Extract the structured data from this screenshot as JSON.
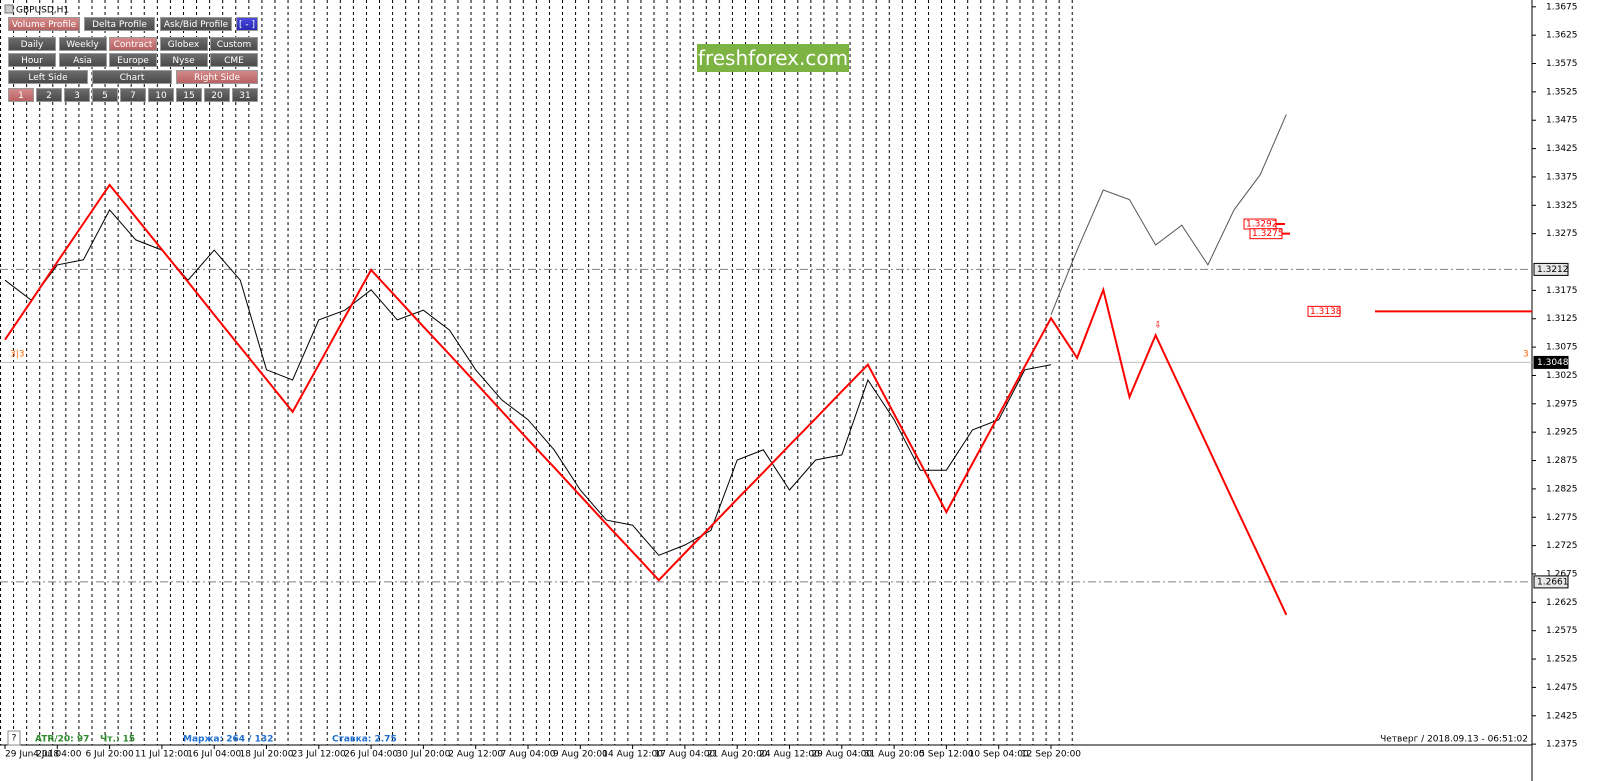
{
  "symbol": "GBPUSD,H1",
  "watermark": "freshforex.com",
  "buttons": {
    "row1": [
      {
        "label": "Volume Profile",
        "active": true
      },
      {
        "label": "Delta Profile",
        "active": false
      },
      {
        "label": "Ask/Bid Profile",
        "active": false
      },
      {
        "label": "[ - ]",
        "active": false
      }
    ],
    "row2": [
      {
        "label": "Daily",
        "active": false
      },
      {
        "label": "Weekly",
        "active": false
      },
      {
        "label": "Contract",
        "active": true
      },
      {
        "label": "Globex",
        "active": false
      },
      {
        "label": "Custom",
        "active": false
      }
    ],
    "row3": [
      {
        "label": "Hour",
        "active": false
      },
      {
        "label": "Asia",
        "active": false
      },
      {
        "label": "Europe",
        "active": false
      },
      {
        "label": "Nyse",
        "active": false
      },
      {
        "label": "CME",
        "active": false
      }
    ],
    "row4": [
      {
        "label": "Left Side",
        "active": false
      },
      {
        "label": "Chart",
        "active": false
      },
      {
        "label": "Right Side",
        "active": true
      }
    ],
    "row5": [
      {
        "label": "1",
        "active": true
      },
      {
        "label": "2",
        "active": false
      },
      {
        "label": "3",
        "active": false
      },
      {
        "label": "5",
        "active": false
      },
      {
        "label": "7",
        "active": false
      },
      {
        "label": "10",
        "active": false
      },
      {
        "label": "15",
        "active": false
      },
      {
        "label": "20",
        "active": false
      },
      {
        "label": "31",
        "active": false
      }
    ]
  },
  "status": {
    "help": "?",
    "atr": "ATR/20: 97",
    "hours": "Чт.: 15",
    "margin": "Маржа: 264 / 132",
    "rate": "Ставка: 2.75",
    "datetime": "Четверг / 2018.09.13 - 06:51:02"
  },
  "annotations": {
    "left_count": "3|3",
    "right_count": "3",
    "arrow": "⇩"
  },
  "chart_data": {
    "type": "line",
    "categories": [
      "29 Jun 2018",
      null,
      "4 Jul 04:00",
      null,
      "6 Jul 20:00",
      null,
      "11 Jul 12:00",
      null,
      "16 Jul 04:00",
      null,
      "18 Jul 20:00",
      null,
      "23 Jul 12:00",
      null,
      "26 Jul 04:00",
      null,
      "30 Jul 20:00",
      null,
      "2 Aug 12:00",
      null,
      "7 Aug 04:00",
      null,
      "9 Aug 20:00",
      null,
      "14 Aug 12:00",
      null,
      "17 Aug 04:00",
      null,
      "21 Aug 20:00",
      null,
      "24 Aug 12:00",
      null,
      "29 Aug 04:00",
      null,
      "31 Aug 20:00",
      null,
      "5 Sep 12:00",
      null,
      "10 Sep 04:00",
      null,
      "12 Sep 20:00",
      null,
      null,
      null,
      null,
      null,
      null,
      null,
      null,
      null
    ],
    "series": [
      {
        "color": "#000000",
        "width": 1,
        "values": [
          1.3193,
          1.3158,
          1.322,
          1.3229,
          1.3317,
          1.3264,
          1.3246,
          1.3193,
          1.3246,
          1.3193,
          1.3035,
          1.3017,
          1.3123,
          1.314,
          1.3176,
          1.3123,
          1.314,
          1.3105,
          1.3035,
          1.2982,
          1.2947,
          1.2894,
          1.2823,
          1.277,
          1.2761,
          1.2708,
          1.2726,
          1.2752,
          1.2876,
          1.2894,
          1.2823,
          1.2876,
          1.2885,
          1.3017,
          1.2947,
          1.2858,
          1.2858,
          1.2929,
          1.2947,
          1.3035,
          1.3044,
          null,
          null,
          null,
          null,
          null,
          null,
          null,
          null,
          null
        ]
      },
      {
        "color": "#ff0000",
        "width": 2,
        "values": [
          1.3088,
          1.3156,
          1.3225,
          1.3293,
          1.3361,
          1.3304,
          1.3247,
          1.319,
          1.3132,
          1.3075,
          1.3018,
          1.2961,
          1.3044,
          1.3128,
          1.3211,
          1.3161,
          1.3111,
          1.3062,
          1.3012,
          1.2962,
          1.2912,
          1.2863,
          1.2813,
          1.2763,
          1.2714,
          1.2664,
          1.2712,
          1.2759,
          1.2807,
          1.2854,
          1.2902,
          1.2949,
          1.2997,
          1.3044,
          1.2957,
          1.2871,
          1.2784,
          1.287,
          1.2955,
          1.3041,
          1.3126,
          1.3056,
          1.3176,
          1.2987,
          1.3096,
          1.2997,
          1.2899,
          1.28,
          1.2702,
          1.2603
        ]
      },
      {
        "color": "#555555",
        "width": 1,
        "values": [
          null,
          null,
          null,
          null,
          null,
          null,
          null,
          null,
          null,
          null,
          null,
          null,
          null,
          null,
          null,
          null,
          null,
          null,
          null,
          null,
          null,
          null,
          null,
          null,
          null,
          null,
          null,
          null,
          null,
          null,
          null,
          null,
          null,
          null,
          null,
          null,
          null,
          null,
          null,
          null,
          1.3132,
          1.3246,
          1.3352,
          1.3335,
          1.3255,
          1.329,
          1.322,
          1.3317,
          1.3379,
          1.3485
        ]
      }
    ],
    "ylim": [
      1.2347,
      1.3687
    ],
    "yticks": [
      1.2375,
      1.2425,
      1.2475,
      1.2525,
      1.2575,
      1.2625,
      1.2675,
      1.2725,
      1.2775,
      1.2825,
      1.2875,
      1.2925,
      1.2975,
      1.3025,
      1.3075,
      1.3125,
      1.3175,
      1.3275,
      1.3325,
      1.3375,
      1.3425,
      1.3475,
      1.3525,
      1.3575,
      1.3625,
      1.3675
    ],
    "price_levels": [
      {
        "value": 1.3212,
        "color": "#808080",
        "dash": "8,3,2,3"
      },
      {
        "value": 1.3048,
        "color": "#c0c0c0",
        "dash": "none"
      },
      {
        "value": 1.2661,
        "color": "#808080",
        "dash": "8,3,2,3"
      }
    ],
    "profile_levels": [
      {
        "value": 1.3292,
        "color": "#ff0000"
      },
      {
        "value": 1.3275,
        "color": "#ff0000"
      },
      {
        "value": 1.3138,
        "color": "#ff0000"
      }
    ]
  }
}
